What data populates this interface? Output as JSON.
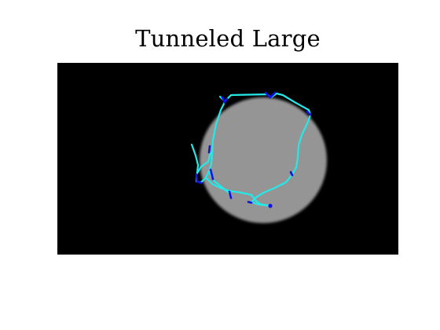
{
  "figure": {
    "title": "Tunneled Large"
  },
  "colors": {
    "background": "#000000",
    "disk": "#959595",
    "path": "#26e8e8",
    "endpoint_marker": "#1212e8",
    "page": "#ffffff"
  }
}
